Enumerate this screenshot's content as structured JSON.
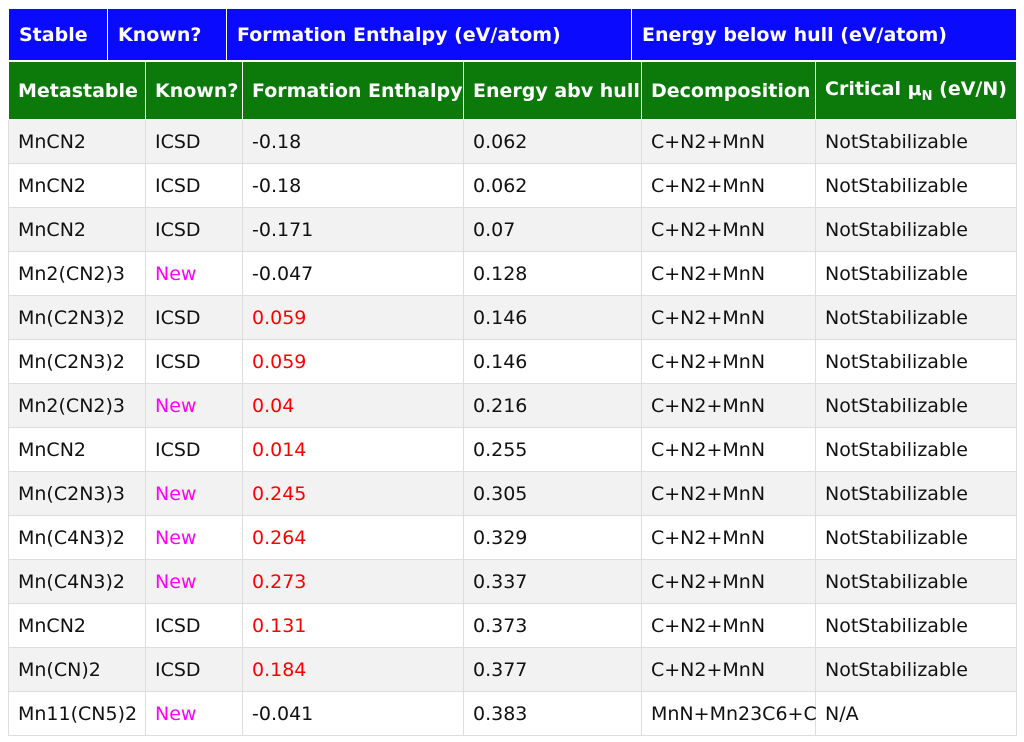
{
  "stable_header": {
    "stable": "Stable",
    "known": "Known?",
    "formation_enthalpy": "Formation Enthalpy (eV/atom)",
    "energy_below_hull": "Energy below hull (eV/atom)"
  },
  "metastable_header": {
    "metastable": "Metastable",
    "known": "Known?",
    "formation_enthalpy": "Formation Enthalpy",
    "energy_abv_hull": "Energy abv hull",
    "decomposition": "Decomposition",
    "critical_mu_prefix": "Critical μ",
    "critical_mu_sub": "N",
    "critical_mu_suffix": " (eV/N)"
  },
  "colors": {
    "stable_header_bg": "#0a0aff",
    "metastable_header_bg": "#0b7a0b",
    "new_text": "#ff00ff",
    "positive_enthalpy_text": "#ff0000"
  },
  "rows": [
    {
      "formula": "MnCN2",
      "known": "ICSD",
      "formation_enthalpy": "-0.18",
      "energy_abv_hull": "0.062",
      "decomposition": "C+N2+MnN",
      "critical_mu": "NotStabilizable"
    },
    {
      "formula": "MnCN2",
      "known": "ICSD",
      "formation_enthalpy": "-0.18",
      "energy_abv_hull": "0.062",
      "decomposition": "C+N2+MnN",
      "critical_mu": "NotStabilizable"
    },
    {
      "formula": "MnCN2",
      "known": "ICSD",
      "formation_enthalpy": "-0.171",
      "energy_abv_hull": "0.07",
      "decomposition": "C+N2+MnN",
      "critical_mu": "NotStabilizable"
    },
    {
      "formula": "Mn2(CN2)3",
      "known": "New",
      "formation_enthalpy": "-0.047",
      "energy_abv_hull": "0.128",
      "decomposition": "C+N2+MnN",
      "critical_mu": "NotStabilizable"
    },
    {
      "formula": "Mn(C2N3)2",
      "known": "ICSD",
      "formation_enthalpy": "0.059",
      "energy_abv_hull": "0.146",
      "decomposition": "C+N2+MnN",
      "critical_mu": "NotStabilizable"
    },
    {
      "formula": "Mn(C2N3)2",
      "known": "ICSD",
      "formation_enthalpy": "0.059",
      "energy_abv_hull": "0.146",
      "decomposition": "C+N2+MnN",
      "critical_mu": "NotStabilizable"
    },
    {
      "formula": "Mn2(CN2)3",
      "known": "New",
      "formation_enthalpy": "0.04",
      "energy_abv_hull": "0.216",
      "decomposition": "C+N2+MnN",
      "critical_mu": "NotStabilizable"
    },
    {
      "formula": "MnCN2",
      "known": "ICSD",
      "formation_enthalpy": "0.014",
      "energy_abv_hull": "0.255",
      "decomposition": "C+N2+MnN",
      "critical_mu": "NotStabilizable"
    },
    {
      "formula": "Mn(C2N3)3",
      "known": "New",
      "formation_enthalpy": "0.245",
      "energy_abv_hull": "0.305",
      "decomposition": "C+N2+MnN",
      "critical_mu": "NotStabilizable"
    },
    {
      "formula": "Mn(C4N3)2",
      "known": "New",
      "formation_enthalpy": "0.264",
      "energy_abv_hull": "0.329",
      "decomposition": "C+N2+MnN",
      "critical_mu": "NotStabilizable"
    },
    {
      "formula": "Mn(C4N3)2",
      "known": "New",
      "formation_enthalpy": "0.273",
      "energy_abv_hull": "0.337",
      "decomposition": "C+N2+MnN",
      "critical_mu": "NotStabilizable"
    },
    {
      "formula": "MnCN2",
      "known": "ICSD",
      "formation_enthalpy": "0.131",
      "energy_abv_hull": "0.373",
      "decomposition": "C+N2+MnN",
      "critical_mu": "NotStabilizable"
    },
    {
      "formula": "Mn(CN)2",
      "known": "ICSD",
      "formation_enthalpy": "0.184",
      "energy_abv_hull": "0.377",
      "decomposition": "C+N2+MnN",
      "critical_mu": "NotStabilizable"
    },
    {
      "formula": "Mn11(CN5)2",
      "known": "New",
      "formation_enthalpy": "-0.041",
      "energy_abv_hull": "0.383",
      "decomposition": "MnN+Mn23C6+C",
      "critical_mu": "N/A"
    }
  ]
}
